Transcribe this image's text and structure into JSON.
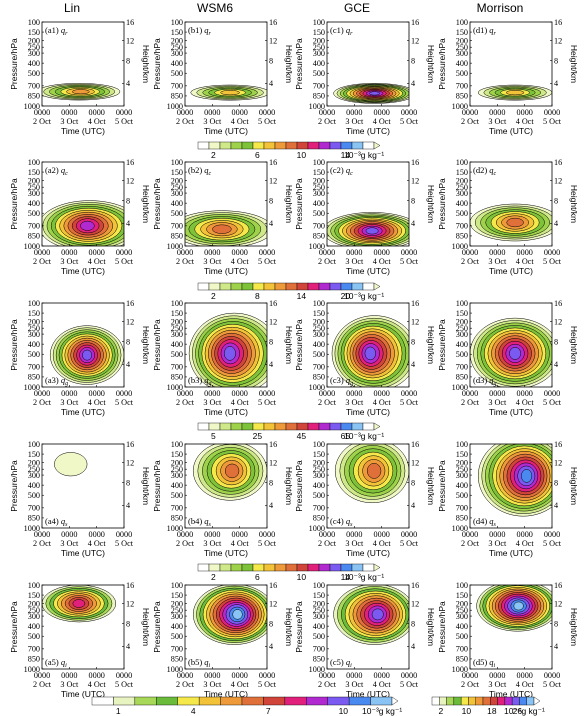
{
  "chart_data": {
    "type": "heatmap",
    "column_titles": [
      "Lin",
      "WSM6",
      "GCE",
      "Morrison"
    ],
    "y_left_label": "Pressure/hPa",
    "y_right_label": "Height/km",
    "x_label": "Time (UTC)",
    "x_ticks": [
      {
        "hour": "0000",
        "day": "2 Oct"
      },
      {
        "hour": "0000",
        "day": "3 Oct"
      },
      {
        "hour": "0000",
        "day": "4 Oct"
      },
      {
        "hour": "0000",
        "day": "5 Oct"
      }
    ],
    "pressure_ticks": [
      "100",
      "150",
      "200",
      "250",
      "300",
      "400",
      "500",
      "700",
      "850",
      "1000"
    ],
    "height_ticks": [
      "16",
      "12",
      "8",
      "4"
    ],
    "colorbar_ticks": {
      "qr": [
        "2",
        "6",
        "10",
        "14"
      ],
      "qc": [
        "2",
        "8",
        "14",
        "20"
      ],
      "qg": [
        "5",
        "25",
        "45",
        "65"
      ],
      "qs": [
        "2",
        "6",
        "10",
        "14"
      ],
      "qi_main": [
        "1",
        "4",
        "7",
        "10"
      ],
      "qi_morrison": [
        "2",
        "10",
        "18",
        "26"
      ]
    },
    "units": {
      "main": "10⁻³g kg⁻¹",
      "qi_morrison": "10⁻⁵g kg⁻¹"
    },
    "rows": [
      {
        "var": "q",
        "sub": "r",
        "panels": [
          "(a1)",
          "(b1)",
          "(c1)",
          "(d1)"
        ]
      },
      {
        "var": "q",
        "sub": "c",
        "panels": [
          "(a2)",
          "(b2)",
          "(c2)",
          "(d2)"
        ]
      },
      {
        "var": "q",
        "sub": "g",
        "panels": [
          "(a3)",
          "(b3)",
          "(c3)",
          "(d3)"
        ]
      },
      {
        "var": "q",
        "sub": "s",
        "panels": [
          "(a4)",
          "(b4)",
          "(c4)",
          "(d4)"
        ]
      },
      {
        "var": "q",
        "sub": "i",
        "panels": [
          "(a5)",
          "(b5)",
          "(c5)",
          "(d5)"
        ]
      }
    ]
  },
  "colors": {
    "palette": [
      "#ffffff",
      "#f0f8c8",
      "#cfe88a",
      "#9ed24a",
      "#7ec23a",
      "#f4e84a",
      "#f2c238",
      "#ee9a3a",
      "#e0703a",
      "#d0443a",
      "#e0207a",
      "#b02ad0",
      "#7a5af0",
      "#4a8af0",
      "#8ac4f4"
    ],
    "bottom_palette": [
      "#ffffff",
      "#e8f4c0",
      "#a8d858",
      "#6cbc3c",
      "#f4e84a",
      "#f2c238",
      "#ee9a3a",
      "#e0703a",
      "#d0443a",
      "#e0207a",
      "#b02ad0",
      "#7a5af0",
      "#4a8af0",
      "#8ac4f4"
    ]
  }
}
